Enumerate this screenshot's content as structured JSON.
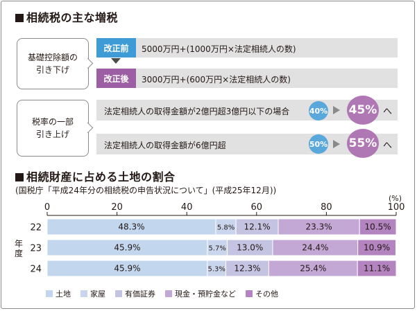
{
  "section1": {
    "title": "相続税の主な増税",
    "deduction": {
      "label": "基礎控除額の\n引き下げ",
      "before_tag": "改正前",
      "before_text": "5000万円+(1000万円×法定相続人の数)",
      "after_tag": "改正後",
      "after_text": "3000万円+(600万円×法定相続人の数)"
    },
    "rate": {
      "label": "税率の一部\n引き上げ",
      "rows": [
        {
          "text": "法定相続人の取得金額が2億円超3億円以下の場合",
          "from": "40%",
          "to": "45%",
          "suffix": "へ"
        },
        {
          "text": "法定相続人の取得金額が6億円超",
          "from": "50%",
          "to": "55%",
          "suffix": "へ"
        }
      ]
    }
  },
  "section2": {
    "title": "相続財産に占める土地の割合",
    "subtitle": "(国税庁「平成24年分の相続税の申告状況について」(平成25年12月))",
    "unit": "(%)"
  },
  "colors": {
    "tag_before": "#3f9bd5",
    "tag_after": "#9d5fa3",
    "circle_from": "#5aa7dc",
    "circle_to": "#b077b5",
    "gray_row": "#e1e1e1",
    "series": [
      "#c2d7ee",
      "#c8d5ec",
      "#c5c3e2",
      "#c3a8d6",
      "#b384c0"
    ]
  },
  "chart_data": {
    "type": "bar",
    "orientation": "horizontal",
    "stacked": true,
    "y_axis_label": "年度",
    "categories": [
      "22",
      "23",
      "24"
    ],
    "x_ticks": [
      "0",
      "20",
      "40",
      "60",
      "80",
      "100"
    ],
    "xlim": [
      0,
      100
    ],
    "unit": "(%)",
    "series": [
      {
        "name": "土地",
        "values": [
          48.3,
          45.9,
          45.9
        ]
      },
      {
        "name": "家屋",
        "values": [
          5.8,
          5.7,
          5.3
        ]
      },
      {
        "name": "有価証券",
        "values": [
          12.1,
          13.0,
          12.3
        ]
      },
      {
        "name": "現金・預貯金など",
        "values": [
          23.3,
          24.4,
          25.4
        ]
      },
      {
        "name": "その他",
        "values": [
          10.5,
          10.9,
          11.1
        ]
      }
    ],
    "labels": [
      [
        "48.3%",
        "5.8%",
        "12.1%",
        "23.3%",
        "10.5%"
      ],
      [
        "45.9%",
        "5.7%",
        "13.0%",
        "24.4%",
        "10.9%"
      ],
      [
        "45.9%",
        "5.3%",
        "12.3%",
        "25.4%",
        "11.1%"
      ]
    ],
    "legend_position": "bottom"
  }
}
